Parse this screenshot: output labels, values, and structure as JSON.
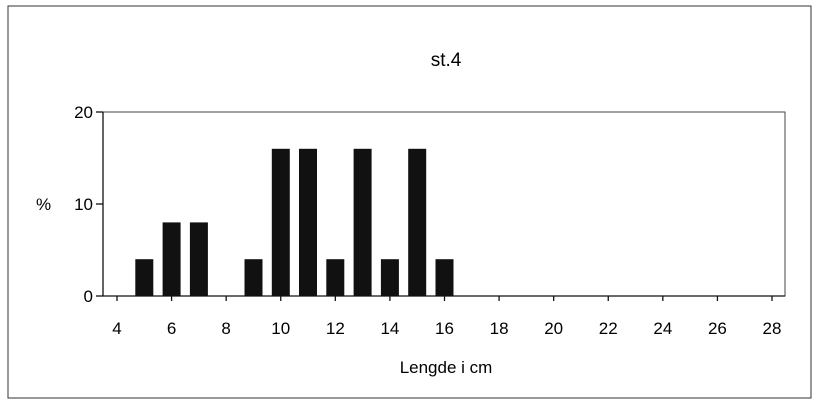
{
  "chart_data": {
    "type": "bar",
    "title": "st.4",
    "xlabel": "Lengde i cm",
    "ylabel": "%",
    "x": [
      5,
      6,
      7,
      9,
      10,
      11,
      12,
      13,
      14,
      15,
      16
    ],
    "values": [
      4,
      8,
      8,
      4,
      16,
      16,
      4,
      16,
      4,
      16,
      4
    ],
    "xlim": [
      4,
      28
    ],
    "ylim": [
      0,
      20
    ],
    "xticks": [
      4,
      6,
      8,
      10,
      12,
      14,
      16,
      18,
      20,
      22,
      24,
      26,
      28
    ],
    "yticks": [
      0,
      10,
      20
    ],
    "ytick_labels": [
      "0",
      "10",
      "20"
    ],
    "grid": false,
    "bar_color": "#111111"
  }
}
